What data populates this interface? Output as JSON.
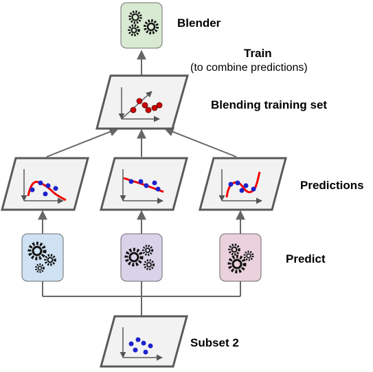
{
  "labels": {
    "blender": "Blender",
    "train": "Train",
    "train_note": "(to combine predictions)",
    "blending_set": "Blending training set",
    "predictions": "Predictions",
    "predict": "Predict",
    "subset": "Subset 2"
  },
  "colors": {
    "blender_box": "#d9ead3",
    "predictor_1_box": "#cfe2f3",
    "predictor_2_box": "#d9d2e9",
    "predictor_3_box": "#ead1dc",
    "panel_fill": "#f2f2f2",
    "panel_stroke": "#595959",
    "arrow": "#666666",
    "red_point": "#cc0000",
    "blue_point": "#1c22cc",
    "curve": "#ee0000"
  },
  "icons": {
    "gears": "gears-icon",
    "plot": "scatter-plot-icon"
  }
}
